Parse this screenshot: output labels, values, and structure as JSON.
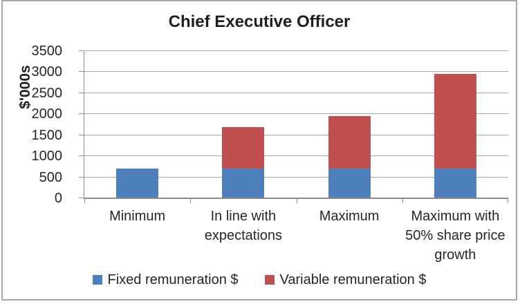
{
  "chart_data": {
    "type": "bar",
    "stacked": true,
    "title": "Chief Executive Officer",
    "ylabel": "$'000s",
    "xlabel": "",
    "categories": [
      "Minimum",
      "In line with\nexpectations",
      "Maximum",
      "Maximum with\n50% share price\ngrowth"
    ],
    "series": [
      {
        "name": "Fixed remuneration $",
        "color": "#4e80bd",
        "values": [
          700,
          700,
          700,
          700
        ]
      },
      {
        "name": "Variable remuneration $",
        "color": "#c0504d",
        "values": [
          0,
          1000,
          1250,
          2250
        ]
      }
    ],
    "totals": [
      700,
      1700,
      1950,
      2950
    ],
    "ylim": [
      0,
      3500
    ],
    "yticks": [
      0,
      500,
      1000,
      1500,
      2000,
      2500,
      3000,
      3500
    ],
    "grid": true,
    "legend_position": "bottom"
  },
  "colors": {
    "bar_fixed": "#4e80bd",
    "bar_variable": "#c0504d",
    "gridline": "#a6a6a6",
    "axis_line": "#8c8c8c",
    "text": "#262626",
    "frame_border": "#a8a8a8"
  }
}
